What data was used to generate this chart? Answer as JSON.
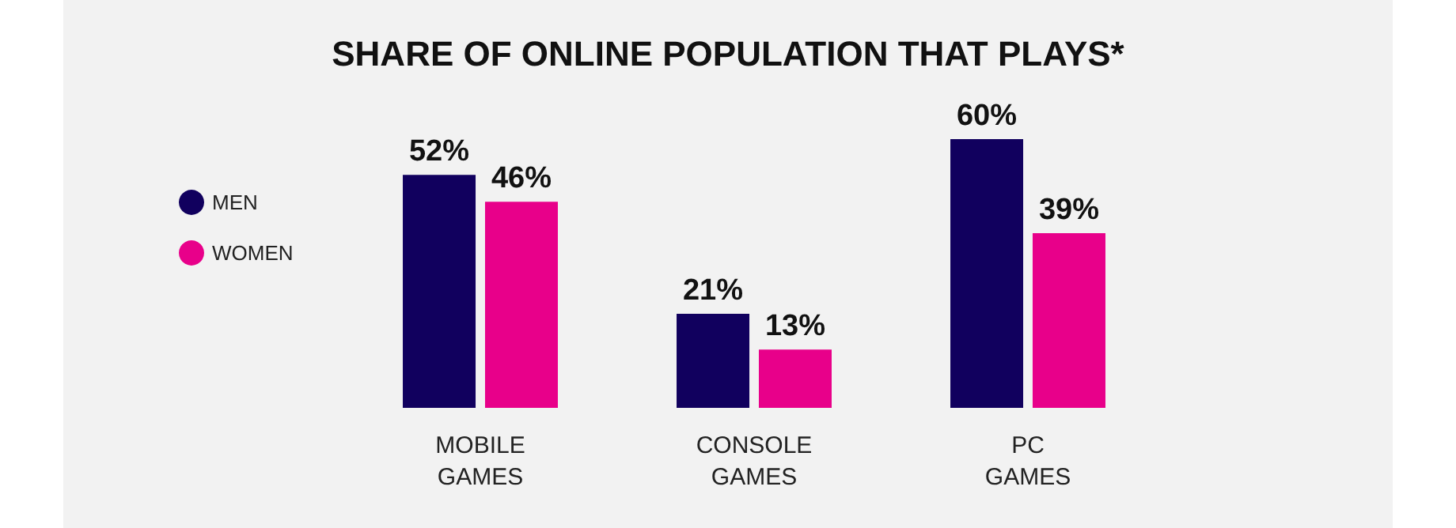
{
  "chart_data": {
    "type": "bar",
    "title": "SHARE OF ONLINE POPULATION THAT PLAYS*",
    "categories": [
      "MOBILE\nGAMES",
      "CONSOLE\nGAMES",
      "PC\nGAMES"
    ],
    "legend": "top left",
    "grid": false,
    "series": [
      {
        "name": "MEN",
        "color": "#11005e",
        "values": [
          52,
          21,
          60
        ],
        "value_labels": [
          "52%",
          "21%",
          "60%"
        ]
      },
      {
        "name": "WOMEN",
        "color": "#e8008a",
        "values": [
          46,
          13,
          39
        ],
        "value_labels": [
          "46%",
          "13%",
          "39%"
        ]
      }
    ]
  }
}
